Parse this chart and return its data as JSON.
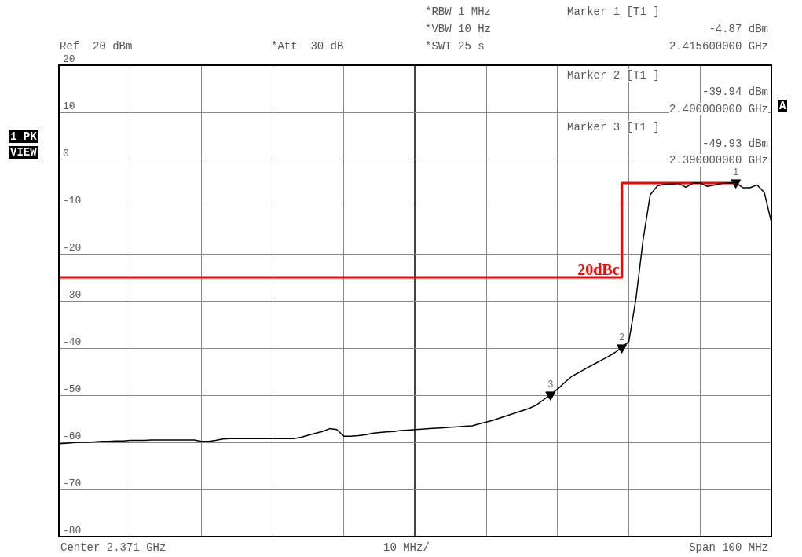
{
  "chart_data": {
    "type": "line",
    "categories": [
      null,
      null,
      null,
      null,
      null,
      null,
      null,
      null,
      null,
      null,
      null,
      null,
      null,
      null,
      null,
      null,
      null,
      null,
      null,
      null,
      null,
      null,
      null,
      null,
      null,
      null,
      null,
      null,
      null,
      null,
      null,
      null,
      null,
      null,
      null,
      null,
      null,
      null,
      null,
      null,
      null,
      null,
      null,
      null,
      null,
      null,
      null,
      null,
      null,
      null,
      null,
      null,
      null,
      null,
      null,
      null,
      null,
      null,
      null,
      null,
      null,
      null,
      null,
      null,
      null,
      null,
      null,
      null,
      null,
      null,
      null,
      null,
      null,
      null,
      null,
      null,
      null,
      null,
      null,
      null,
      null,
      null,
      null,
      null,
      null,
      null,
      null,
      null,
      null,
      null,
      null,
      null,
      null,
      null,
      null,
      null,
      null,
      null,
      null,
      null,
      null
    ],
    "ylim": [
      -80,
      20
    ],
    "yticks": [
      20,
      10,
      0,
      -10,
      -20,
      -30,
      -40,
      -50,
      -60,
      -70,
      -80
    ],
    "tick_labels": "y",
    "grid": true,
    "legend": false,
    "marker": "none",
    "line_style": "solid",
    "series": [
      {
        "color": "#000000",
        "values": [
          -60.3,
          -60.2,
          -60.1,
          -60,
          -60,
          -59.9,
          -59.8,
          -59.8,
          -59.7,
          -59.7,
          -59.6,
          -59.6,
          -59.6,
          -59.5,
          -59.5,
          -59.5,
          -59.5,
          -59.5,
          -59.5,
          -59.5,
          -59.8,
          -59.8,
          -59.6,
          -59.3,
          -59.2,
          -59.2,
          -59.2,
          -59.2,
          -59.2,
          -59.2,
          -59.2,
          -59.2,
          -59.2,
          -59.2,
          -58.9,
          -58.5,
          -58.1,
          -57.7,
          -57.1,
          -57.3,
          -58.7,
          -58.7,
          -58.6,
          -58.4,
          -58.1,
          -57.9,
          -57.8,
          -57.7,
          -57.5,
          -57.4,
          -57.3,
          -57.2,
          -57.1,
          -57,
          -56.9,
          -56.8,
          -56.7,
          -56.6,
          -56.5,
          -56.1,
          -55.7,
          -55.3,
          -54.8,
          -54.3,
          -53.8,
          -53.3,
          -52.8,
          -52.1,
          -51,
          -49.9,
          -48.7,
          -47.3,
          -46,
          -45.2,
          -44.3,
          -43.5,
          -42.7,
          -41.9,
          -41,
          -39.9,
          -38.6,
          -29.5,
          -17,
          -7.5,
          -5.6,
          -5.3,
          -5.2,
          -5.1,
          -5.9,
          -5,
          -5,
          -5.7,
          -5.4,
          -5.1,
          -5,
          -4.9,
          -6,
          -6,
          -5.4,
          -7,
          -13.3
        ]
      },
      {
        "type": "step",
        "name": "20dBc",
        "color": "#ff0000",
        "values": [
          -25,
          -25,
          -25,
          -25,
          -25,
          -25,
          -25,
          -25,
          -25,
          -25,
          -25,
          -25,
          -25,
          -25,
          -25,
          -25,
          -25,
          -25,
          -25,
          -25,
          -25,
          -25,
          -25,
          -25,
          -25,
          -25,
          -25,
          -25,
          -25,
          -25,
          -25,
          -25,
          -25,
          -25,
          -25,
          -25,
          -25,
          -25,
          -25,
          -25,
          -25,
          -25,
          -25,
          -25,
          -25,
          -25,
          -25,
          -25,
          -25,
          -25,
          -25,
          -25,
          -25,
          -25,
          -25,
          -25,
          -25,
          -25,
          -25,
          -25,
          -25,
          -25,
          -25,
          -25,
          -25,
          -25,
          -25,
          -25,
          -25,
          -25,
          -25,
          -25,
          -25,
          -25,
          -25,
          -25,
          -25,
          -25,
          -25,
          -5,
          -5,
          -5,
          -5,
          -5,
          -5,
          -5,
          -5,
          -5,
          -5,
          -5,
          -5,
          -5,
          -5,
          -5,
          -5,
          -5,
          null,
          null,
          null,
          null,
          null
        ]
      },
      {
        "type": "scatter",
        "marker": "triangle",
        "color": "#000000",
        "values": [
          null,
          null,
          null,
          null,
          null,
          null,
          null,
          null,
          null,
          null,
          null,
          null,
          null,
          null,
          null,
          null,
          null,
          null,
          null,
          null,
          null,
          null,
          null,
          null,
          null,
          null,
          null,
          null,
          null,
          null,
          null,
          null,
          null,
          null,
          null,
          null,
          null,
          null,
          null,
          null,
          null,
          null,
          null,
          null,
          null,
          null,
          null,
          null,
          null,
          null,
          null,
          null,
          null,
          null,
          null,
          null,
          null,
          null,
          null,
          null,
          null,
          null,
          null,
          null,
          null,
          null,
          null,
          null,
          null,
          -49.9,
          null,
          null,
          null,
          null,
          null,
          null,
          null,
          null,
          null,
          -39.9,
          null,
          null,
          null,
          null,
          null,
          null,
          null,
          null,
          null,
          null,
          null,
          null,
          null,
          null,
          null,
          -4.9,
          null,
          null,
          null,
          null,
          null
        ]
      }
    ],
    "annotations": [
      "Ref  20 dBm",
      "*Att  30 dB",
      "*RBW 1 MHz",
      "*VBW 10 Hz",
      "*SWT 25 s",
      "Marker 1 [T1 ]",
      "-4.87 dBm",
      "2.415600000 GHz",
      "Marker 2 [T1 ]",
      "-39.94 dBm",
      "2.400000000 GHz",
      "Marker 3 [T1 ]",
      "-49.93 dBm",
      "2.390000000 GHz",
      "1 PK",
      "VIEW",
      "A",
      "Center 2.371 GHz",
      "10 MHz/",
      "Span 100 MHz",
      {
        "text": "1",
        "y": -4.9
      },
      {
        "text": "2",
        "y": -39.9
      },
      {
        "text": "3",
        "y": -49.9
      }
    ]
  }
}
